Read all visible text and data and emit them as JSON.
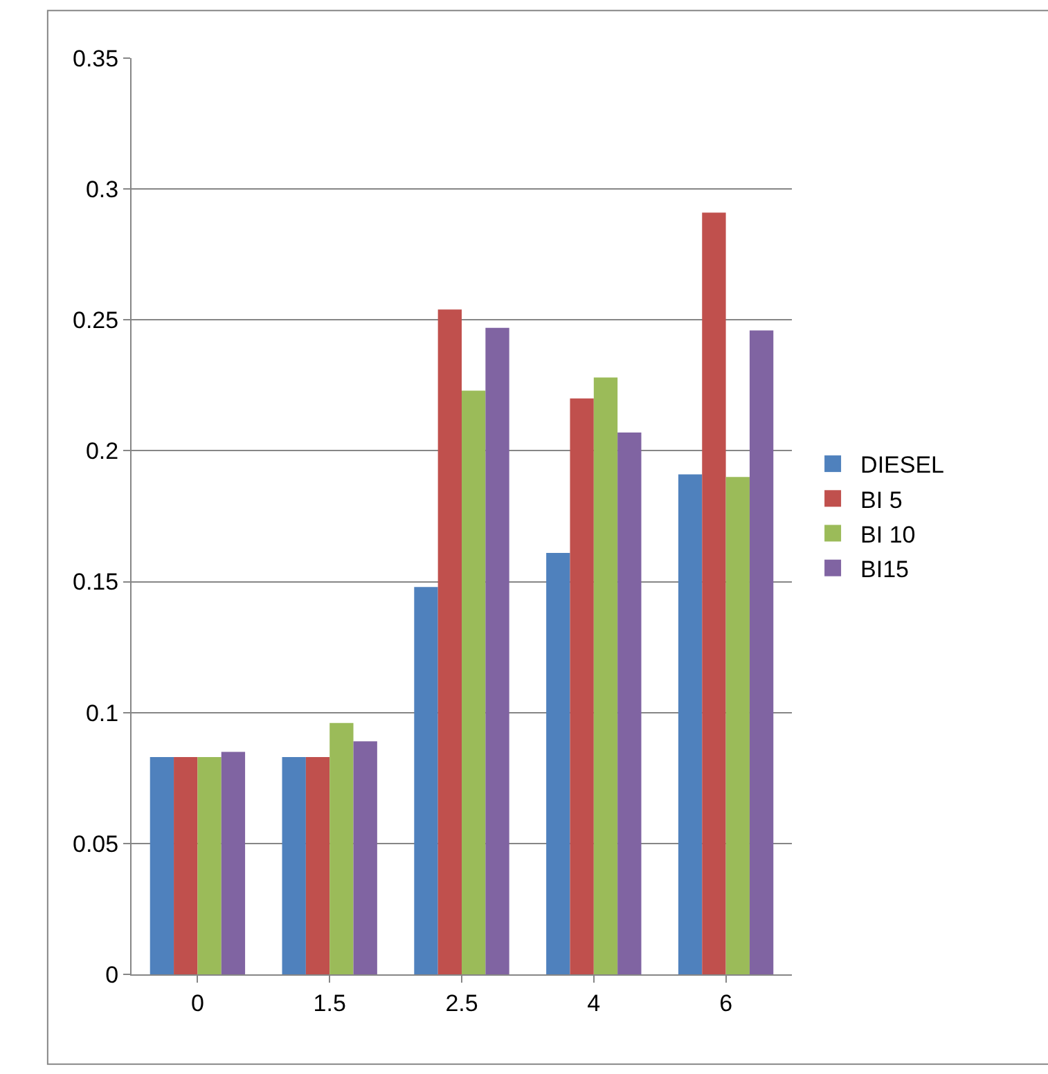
{
  "chart_data": {
    "type": "bar",
    "categories": [
      "0",
      "1.5",
      "2.5",
      "4",
      "6"
    ],
    "series": [
      {
        "name": "DIESEL",
        "color": "#4f81bd",
        "values": [
          0.083,
          0.083,
          0.148,
          0.161,
          0.191
        ]
      },
      {
        "name": "BI 5",
        "color": "#c0504d",
        "values": [
          0.083,
          0.083,
          0.254,
          0.22,
          0.291
        ]
      },
      {
        "name": "BI 10",
        "color": "#9bbb59",
        "values": [
          0.083,
          0.096,
          0.223,
          0.228,
          0.19
        ]
      },
      {
        "name": "BI15",
        "color": "#8064a2",
        "values": [
          0.085,
          0.089,
          0.247,
          0.207,
          0.246
        ]
      }
    ],
    "ylim": [
      0,
      0.35
    ],
    "yticks": [
      0,
      0.05,
      0.1,
      0.15,
      0.2,
      0.25,
      0.3,
      0.35
    ],
    "grid": "y",
    "legend": "right"
  }
}
